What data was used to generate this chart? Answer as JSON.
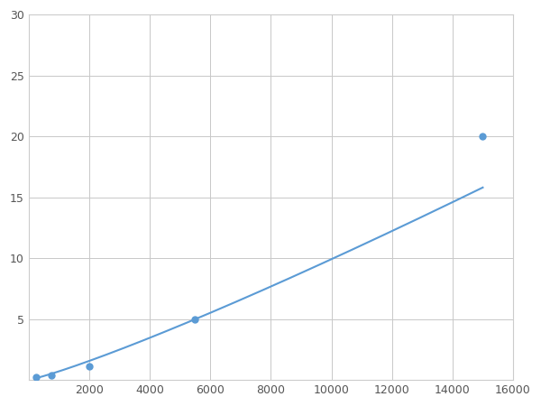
{
  "x": [
    250,
    750,
    2000,
    5500,
    15000
  ],
  "y": [
    0.2,
    0.4,
    1.1,
    5.0,
    20.0
  ],
  "line_color": "#5b9bd5",
  "marker_color": "#5b9bd5",
  "marker_size": 5,
  "line_width": 1.5,
  "xlim": [
    0,
    16000
  ],
  "ylim": [
    0,
    30
  ],
  "xticks": [
    0,
    2000,
    4000,
    6000,
    8000,
    10000,
    12000,
    14000,
    16000
  ],
  "yticks": [
    0,
    5,
    10,
    15,
    20,
    25,
    30
  ],
  "grid_color": "#c8c8c8",
  "background_color": "#ffffff",
  "spine_color": "#cccccc",
  "figsize": [
    6.0,
    4.5
  ],
  "dpi": 100
}
